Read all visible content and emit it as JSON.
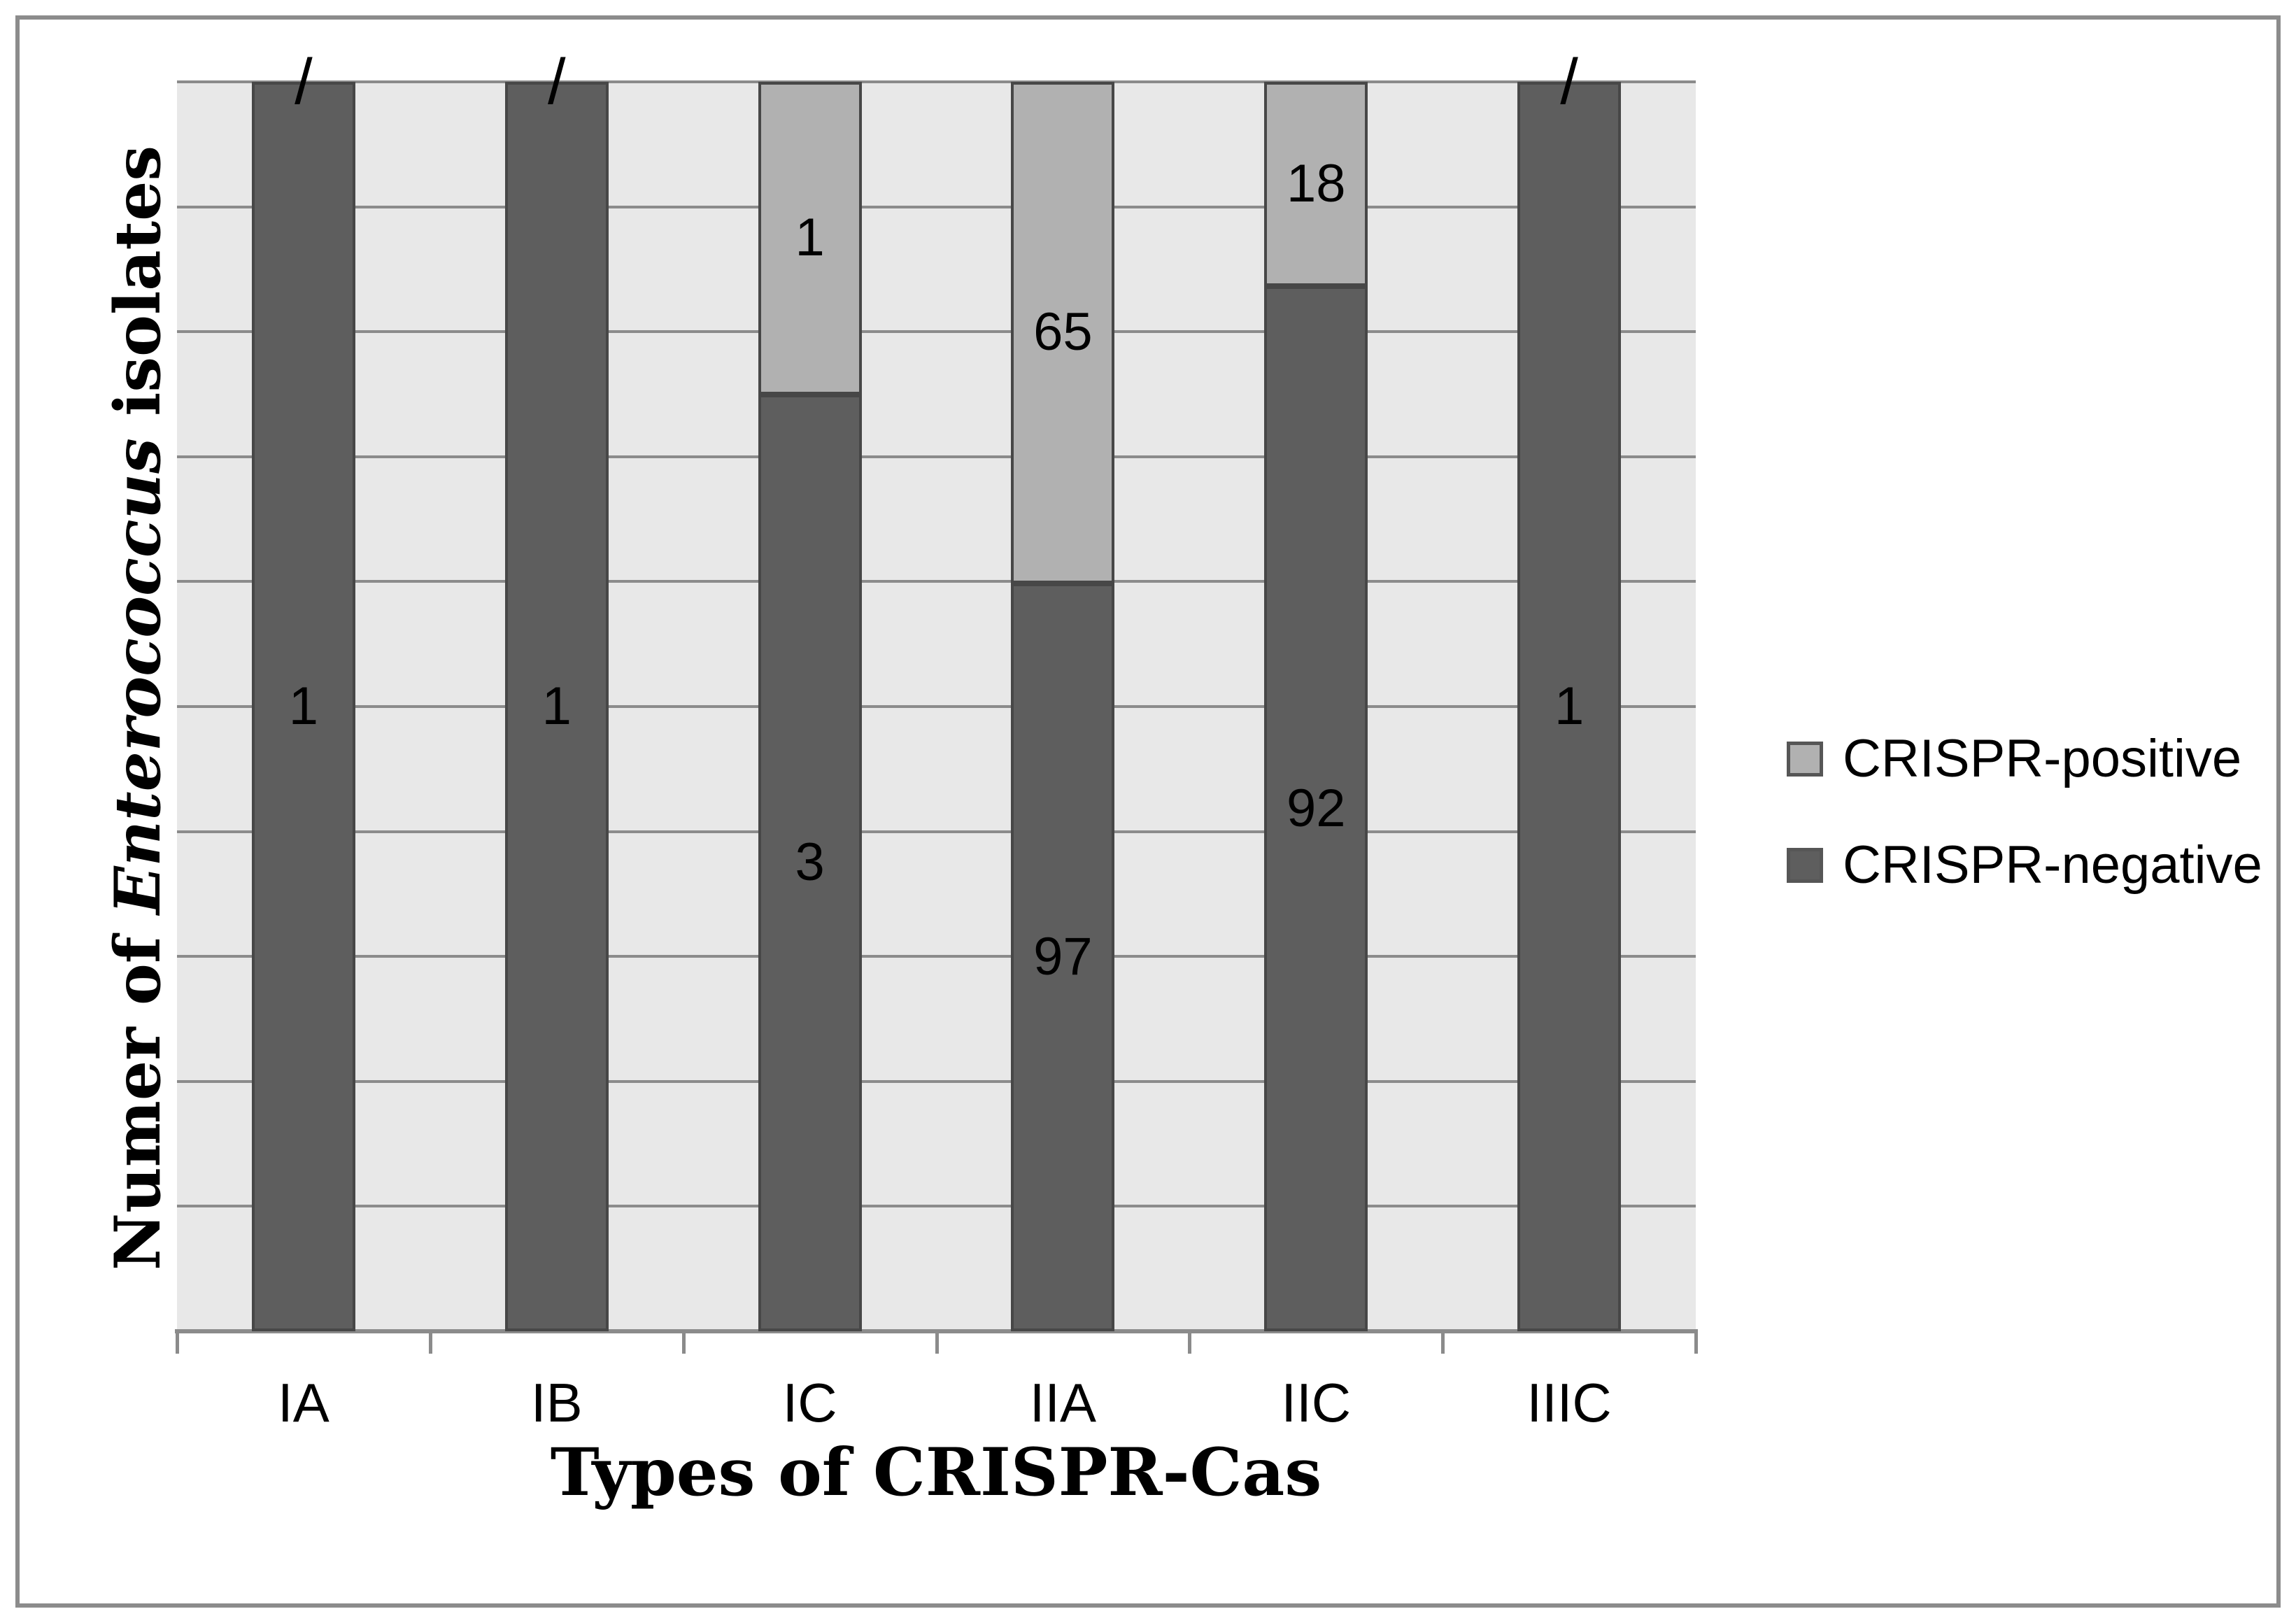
{
  "figure": {
    "background": "#ffffff",
    "frame_color": "#8c8c8c",
    "plot_background": "#e8e8e8",
    "gridline_color": "#8b8b8b",
    "bar_border_color": "#474747",
    "label_color": "#000000"
  },
  "y_axis": {
    "title_prefix": "Numer of ",
    "title_italic": "Enterococcus",
    "title_suffix": " isolates"
  },
  "x_axis": {
    "title": "Types of CRISPR-Cas"
  },
  "legend": {
    "items": [
      {
        "label": "CRISPR-positive",
        "color": "#b1b1b1"
      },
      {
        "label": "CRISPR-negative",
        "color": "#5e5e5e"
      }
    ]
  },
  "chart_data": {
    "type": "bar",
    "subtype": "100-percent-stacked-column",
    "title": "",
    "xlabel": "Types of CRISPR-Cas",
    "ylabel": "Numer of Enterococcus isolates",
    "categories": [
      "IA",
      "IB",
      "IC",
      "IIA",
      "IIC",
      "IIIC"
    ],
    "series": [
      {
        "name": "CRISPR-positive",
        "color": "#b1b1b1",
        "values": [
          0,
          0,
          1,
          65,
          18,
          0
        ],
        "data_labels": [
          "/",
          "/",
          "1",
          "65",
          "18",
          "/"
        ]
      },
      {
        "name": "CRISPR-negative",
        "color": "#5e5e5e",
        "values": [
          1,
          1,
          3,
          97,
          92,
          1
        ],
        "data_labels": [
          "1",
          "1",
          "3",
          "97",
          "92",
          "1"
        ]
      }
    ],
    "ylim": [
      0,
      1
    ],
    "y_tick_interval": 0.1,
    "y_tick_labels_shown": false,
    "gridlines": "horizontal",
    "grid_rows": 10,
    "legend_position": "right",
    "zero_value_label": "/"
  }
}
